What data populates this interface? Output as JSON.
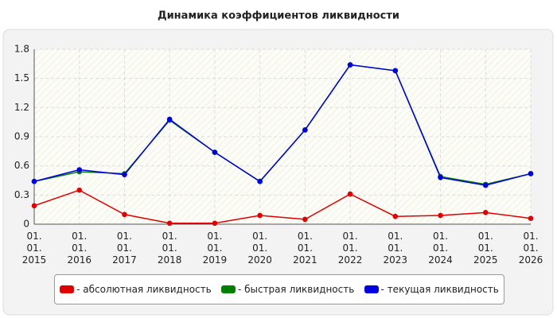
{
  "chart_data": {
    "type": "line",
    "title": "Динамика коэффициентов ликвидности",
    "categories": [
      "01. 01. 2015",
      "01. 01. 2016",
      "01. 01. 2017",
      "01. 01. 2018",
      "01. 01. 2019",
      "01. 01. 2020",
      "01. 01. 2021",
      "01. 01. 2022",
      "01. 01. 2023",
      "01. 01. 2024",
      "01. 01. 2025",
      "01. 01. 2026"
    ],
    "series": [
      {
        "name": "- абсолютная ликвидность",
        "color": "#e00000",
        "values": [
          0.19,
          0.35,
          0.1,
          0.01,
          0.01,
          0.09,
          0.05,
          0.31,
          0.08,
          0.09,
          0.12,
          0.06
        ]
      },
      {
        "name": "- быстрая ликвидность",
        "color": "#008000",
        "values": [
          0.44,
          0.54,
          0.52,
          1.07,
          0.74,
          0.44,
          0.97,
          1.64,
          1.58,
          0.49,
          0.41,
          0.52
        ]
      },
      {
        "name": "- текущая ликвидность",
        "color": "#0000e0",
        "values": [
          0.44,
          0.56,
          0.51,
          1.08,
          0.74,
          0.44,
          0.97,
          1.64,
          1.58,
          0.48,
          0.4,
          0.52
        ]
      }
    ],
    "ylim": [
      0,
      1.8
    ],
    "yticks": [
      0,
      0.3,
      0.6,
      0.9,
      1.2,
      1.5,
      1.8
    ],
    "grid": true
  }
}
